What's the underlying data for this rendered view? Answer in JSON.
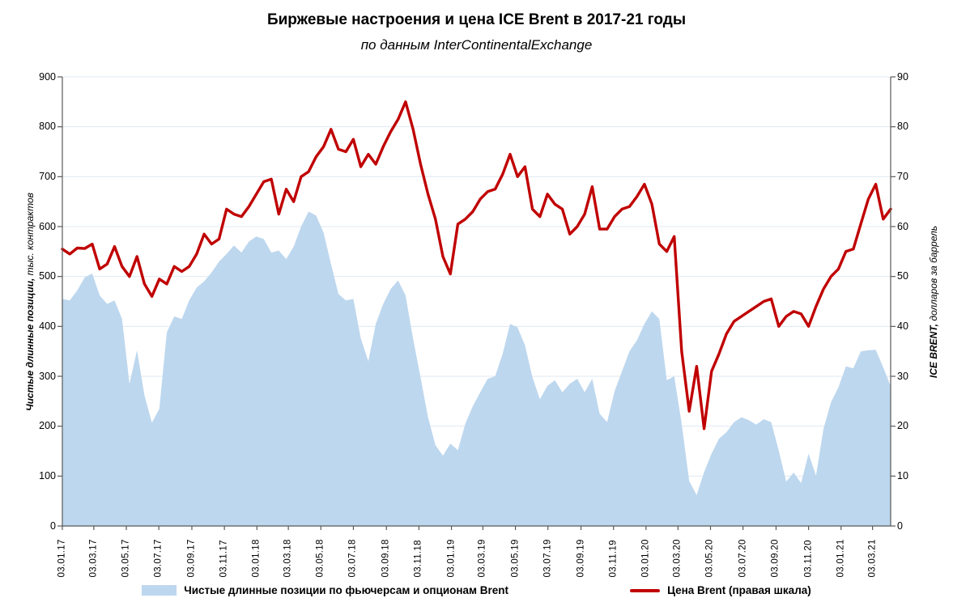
{
  "title": "Биржевые настроения и цена ICE Brent в 2017-21 годы",
  "subtitle": "по данным InterContinentalExchange",
  "legend": {
    "area_label": "Чистые длинные позиции по фьючерсам и опционам Brent",
    "line_label": "Цена Brent (правая шкала)"
  },
  "colors": {
    "line": "#C00000",
    "area": "#BDD7EE",
    "grid": "#DFE8F3",
    "axis": "#595959",
    "text": "#000000"
  },
  "chart_data": {
    "type": "area+line",
    "title": "Биржевые настроения и цена ICE Brent в 2017-21 годы",
    "subtitle": "по данным InterContinentalExchange",
    "x_start_date": "2017-01-03",
    "x_step_days": 14,
    "x_tick_labels": [
      "03.01.17",
      "03.03.17",
      "03.05.17",
      "03.07.17",
      "03.09.17",
      "03.11.17",
      "03.01.18",
      "03.03.18",
      "03.05.18",
      "03.07.18",
      "03.09.18",
      "03.11.18",
      "03.01.19",
      "03.03.19",
      "03.05.19",
      "03.07.19",
      "03.09.19",
      "03.11.19",
      "03.01.20",
      "03.03.20",
      "03.05.20",
      "03.07.20",
      "03.09.20",
      "03.11.20",
      "03.01.21",
      "03.03.21"
    ],
    "left_axis": {
      "title_bold": "Чистые длинные позиции,",
      "title_rest": " тыс. контрактов",
      "min": 0,
      "max": 900,
      "step": 100,
      "tick_labels": [
        0,
        100,
        200,
        300,
        400,
        500,
        600,
        700,
        800,
        900
      ]
    },
    "right_axis": {
      "title_bold": "ICE BRENT,",
      "title_rest": " долларов за баррель",
      "min": 0,
      "max": 90,
      "step": 10,
      "tick_labels": [
        0,
        10,
        20,
        30,
        40,
        50,
        60,
        70,
        80,
        90
      ]
    },
    "grid": true,
    "legend_position": "bottom",
    "series": [
      {
        "name": "Чистые длинные позиции по фьючерсам и опционам Brent",
        "type": "area",
        "axis": "left",
        "color": "#BDD7EE",
        "values": [
          455,
          452,
          472,
          498,
          506,
          462,
          445,
          452,
          415,
          285,
          352,
          262,
          207,
          235,
          388,
          420,
          415,
          452,
          478,
          490,
          508,
          530,
          545,
          562,
          548,
          570,
          580,
          575,
          548,
          552,
          535,
          560,
          600,
          630,
          622,
          588,
          525,
          465,
          452,
          455,
          376,
          330,
          405,
          445,
          475,
          492,
          462,
          375,
          298,
          218,
          162,
          141,
          165,
          152,
          205,
          240,
          268,
          295,
          300,
          345,
          405,
          398,
          362,
          298,
          254,
          281,
          292,
          268,
          285,
          295,
          268,
          295,
          225,
          208,
          270,
          310,
          350,
          372,
          405,
          430,
          415,
          292,
          300,
          205,
          90,
          62,
          108,
          145,
          175,
          188,
          208,
          218,
          212,
          203,
          214,
          208,
          151,
          89,
          107,
          86,
          145,
          101,
          195,
          248,
          278,
          320,
          316,
          350,
          352,
          353,
          318,
          280
        ]
      },
      {
        "name": "Цена Brent (правая шкала)",
        "type": "line",
        "axis": "right",
        "color": "#C00000",
        "values": [
          55.5,
          54.5,
          55.7,
          55.6,
          56.5,
          51.5,
          52.5,
          56.0,
          52.0,
          50.0,
          54.0,
          48.5,
          46.0,
          49.5,
          48.5,
          52.0,
          51.0,
          52.0,
          54.5,
          58.5,
          56.5,
          57.5,
          63.5,
          62.5,
          62.0,
          64.0,
          66.5,
          69.0,
          69.5,
          62.5,
          67.5,
          65.0,
          70.0,
          71.0,
          74.0,
          76.0,
          79.5,
          75.5,
          75.0,
          77.5,
          72.0,
          74.5,
          72.5,
          76.0,
          79.0,
          81.5,
          85.0,
          79.5,
          72.5,
          66.5,
          61.5,
          54.0,
          50.5,
          60.5,
          61.5,
          63.0,
          65.5,
          67.0,
          67.5,
          70.5,
          74.5,
          70.0,
          72.0,
          63.5,
          62.0,
          66.5,
          64.5,
          63.5,
          58.5,
          60.0,
          62.5,
          68.0,
          59.5,
          59.5,
          62.0,
          63.5,
          64.0,
          66.0,
          68.5,
          64.5,
          56.5,
          55.0,
          58.0,
          35.0,
          23.0,
          32.0,
          19.5,
          31.0,
          34.5,
          38.5,
          41.0,
          42.0,
          43.0,
          44.0,
          45.0,
          45.5,
          40.0,
          42.0,
          43.0,
          42.5,
          40.0,
          44.0,
          47.5,
          50.0,
          51.5,
          55.0,
          55.5,
          60.5,
          65.5,
          68.5,
          61.5,
          63.5
        ]
      }
    ]
  }
}
